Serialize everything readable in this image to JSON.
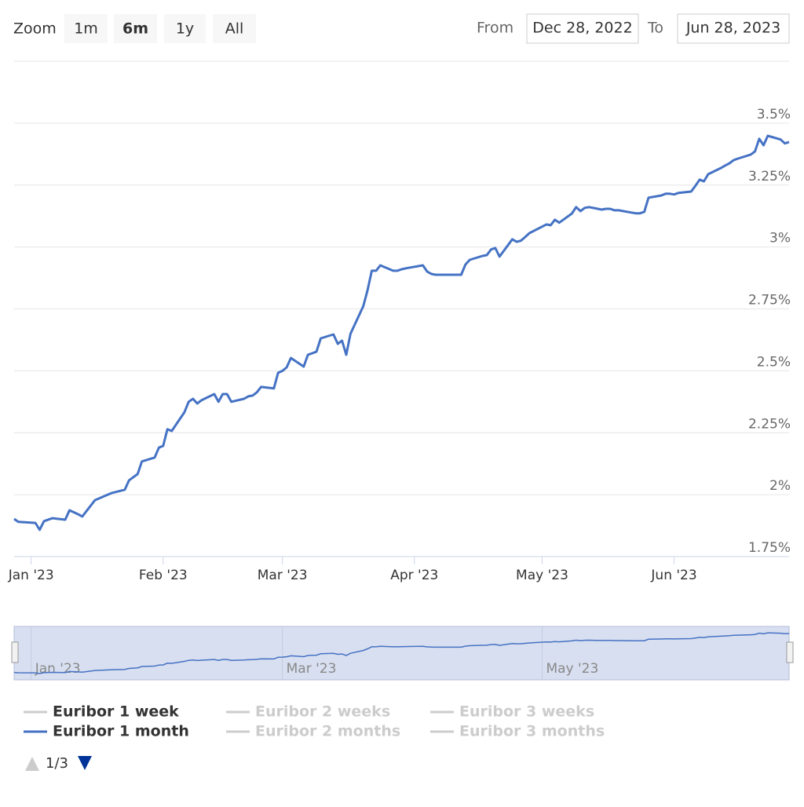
{
  "chart_data": {
    "type": "line",
    "range_selector": {
      "label": "Zoom",
      "buttons": [
        "1m",
        "6m",
        "1y",
        "All"
      ],
      "selected": 1,
      "from_label": "From",
      "from": "Dec 28, 2022",
      "to_label": "To",
      "to": "Jun 28, 2023"
    },
    "xlim": [
      "2022-12-28",
      "2023-06-28"
    ],
    "xticks": [
      {
        "value": "2023-01-01",
        "label": "Jan '23"
      },
      {
        "value": "2023-02-01",
        "label": "Feb '23"
      },
      {
        "value": "2023-03-01",
        "label": "Mar '23"
      },
      {
        "value": "2023-04-01",
        "label": "Apr '23"
      },
      {
        "value": "2023-05-01",
        "label": "May '23"
      },
      {
        "value": "2023-06-01",
        "label": "Jun '23"
      }
    ],
    "ylim": [
      1.75,
      3.75
    ],
    "yticks": [
      {
        "value": 1.75,
        "label": "1.75%"
      },
      {
        "value": 2,
        "label": "2%"
      },
      {
        "value": 2.25,
        "label": "2.25%"
      },
      {
        "value": 2.5,
        "label": "2.5%"
      },
      {
        "value": 2.75,
        "label": "2.75%"
      },
      {
        "value": 3,
        "label": "3%"
      },
      {
        "value": 3.25,
        "label": "3.25%"
      },
      {
        "value": 3.5,
        "label": "3.5%"
      }
    ],
    "grid": true,
    "x": [
      "2022-12-28",
      "2022-12-29",
      "2023-01-02",
      "2023-01-03",
      "2023-01-04",
      "2023-01-06",
      "2023-01-09",
      "2023-01-10",
      "2023-01-12",
      "2023-01-13",
      "2023-01-16",
      "2023-01-19",
      "2023-01-20",
      "2023-01-23",
      "2023-01-24",
      "2023-01-26",
      "2023-01-27",
      "2023-01-30",
      "2023-01-31",
      "2023-02-01",
      "2023-02-02",
      "2023-02-03",
      "2023-02-06",
      "2023-02-07",
      "2023-02-08",
      "2023-02-09",
      "2023-02-10",
      "2023-02-13",
      "2023-02-14",
      "2023-02-15",
      "2023-02-16",
      "2023-02-17",
      "2023-02-20",
      "2023-02-21",
      "2023-02-22",
      "2023-02-23",
      "2023-02-24",
      "2023-02-27",
      "2023-02-28",
      "2023-03-01",
      "2023-03-02",
      "2023-03-03",
      "2023-03-06",
      "2023-03-07",
      "2023-03-08",
      "2023-03-09",
      "2023-03-10",
      "2023-03-13",
      "2023-03-14",
      "2023-03-15",
      "2023-03-16",
      "2023-03-17",
      "2023-03-20",
      "2023-03-21",
      "2023-03-22",
      "2023-03-23",
      "2023-03-24",
      "2023-03-27",
      "2023-03-28",
      "2023-03-29",
      "2023-03-30",
      "2023-03-31",
      "2023-04-03",
      "2023-04-04",
      "2023-04-05",
      "2023-04-06",
      "2023-04-11",
      "2023-04-12",
      "2023-04-13",
      "2023-04-14",
      "2023-04-17",
      "2023-04-18",
      "2023-04-19",
      "2023-04-20",
      "2023-04-21",
      "2023-04-24",
      "2023-04-25",
      "2023-04-26",
      "2023-04-27",
      "2023-04-28",
      "2023-05-02",
      "2023-05-03",
      "2023-05-04",
      "2023-05-05",
      "2023-05-08",
      "2023-05-09",
      "2023-05-10",
      "2023-05-11",
      "2023-05-12",
      "2023-05-15",
      "2023-05-16",
      "2023-05-17",
      "2023-05-18",
      "2023-05-19",
      "2023-05-22",
      "2023-05-23",
      "2023-05-24",
      "2023-05-25",
      "2023-05-26",
      "2023-05-29",
      "2023-05-30",
      "2023-05-31",
      "2023-06-01",
      "2023-06-02",
      "2023-06-05",
      "2023-06-06",
      "2023-06-07",
      "2023-06-08",
      "2023-06-09",
      "2023-06-12",
      "2023-06-13",
      "2023-06-14",
      "2023-06-15",
      "2023-06-16",
      "2023-06-19",
      "2023-06-20",
      "2023-06-21",
      "2023-06-22",
      "2023-06-23",
      "2023-06-26",
      "2023-06-27",
      "2023-06-28"
    ],
    "series": [
      {
        "name": "Euribor 1 week",
        "visible": true,
        "color": "#cccccc"
      },
      {
        "name": "Euribor 2 weeks",
        "visible": false,
        "color": "#cccccc"
      },
      {
        "name": "Euribor 3 weeks",
        "visible": false,
        "color": "#cccccc"
      },
      {
        "name": "Euribor 1 month",
        "visible": true,
        "color": "#4572c4",
        "values": [
          1.902,
          1.89,
          1.886,
          1.858,
          1.893,
          1.905,
          1.899,
          1.937,
          1.921,
          1.912,
          1.978,
          2.0,
          2.007,
          2.02,
          2.058,
          2.083,
          2.134,
          2.15,
          2.19,
          2.197,
          2.264,
          2.257,
          2.333,
          2.375,
          2.387,
          2.368,
          2.381,
          2.406,
          2.375,
          2.406,
          2.406,
          2.375,
          2.387,
          2.397,
          2.4,
          2.413,
          2.435,
          2.429,
          2.492,
          2.5,
          2.514,
          2.552,
          2.517,
          2.565,
          2.571,
          2.577,
          2.631,
          2.647,
          2.609,
          2.622,
          2.565,
          2.65,
          2.761,
          2.825,
          2.904,
          2.904,
          2.926,
          2.904,
          2.904,
          2.91,
          2.914,
          2.917,
          2.926,
          2.901,
          2.891,
          2.888,
          2.888,
          2.888,
          2.929,
          2.948,
          2.964,
          2.967,
          2.99,
          2.996,
          2.961,
          3.031,
          3.021,
          3.025,
          3.04,
          3.056,
          3.091,
          3.088,
          3.11,
          3.098,
          3.135,
          3.161,
          3.145,
          3.158,
          3.161,
          3.151,
          3.154,
          3.154,
          3.148,
          3.148,
          3.139,
          3.136,
          3.136,
          3.142,
          3.199,
          3.208,
          3.215,
          3.215,
          3.212,
          3.218,
          3.224,
          3.247,
          3.272,
          3.265,
          3.294,
          3.319,
          3.329,
          3.338,
          3.351,
          3.357,
          3.373,
          3.386,
          3.437,
          3.411,
          3.449,
          3.434,
          3.418,
          3.424
        ]
      },
      {
        "name": "Euribor 2 months",
        "visible": false,
        "color": "#cccccc"
      },
      {
        "name": "Euribor 3 months",
        "visible": false,
        "color": "#cccccc"
      }
    ],
    "navigator": {
      "xticks": [
        {
          "value": "2023-01-01",
          "label": "Jan '23"
        },
        {
          "value": "2023-03-01",
          "label": "Mar '23"
        },
        {
          "value": "2023-05-01",
          "label": "May '23"
        }
      ]
    },
    "legend_pager": "1/3"
  }
}
